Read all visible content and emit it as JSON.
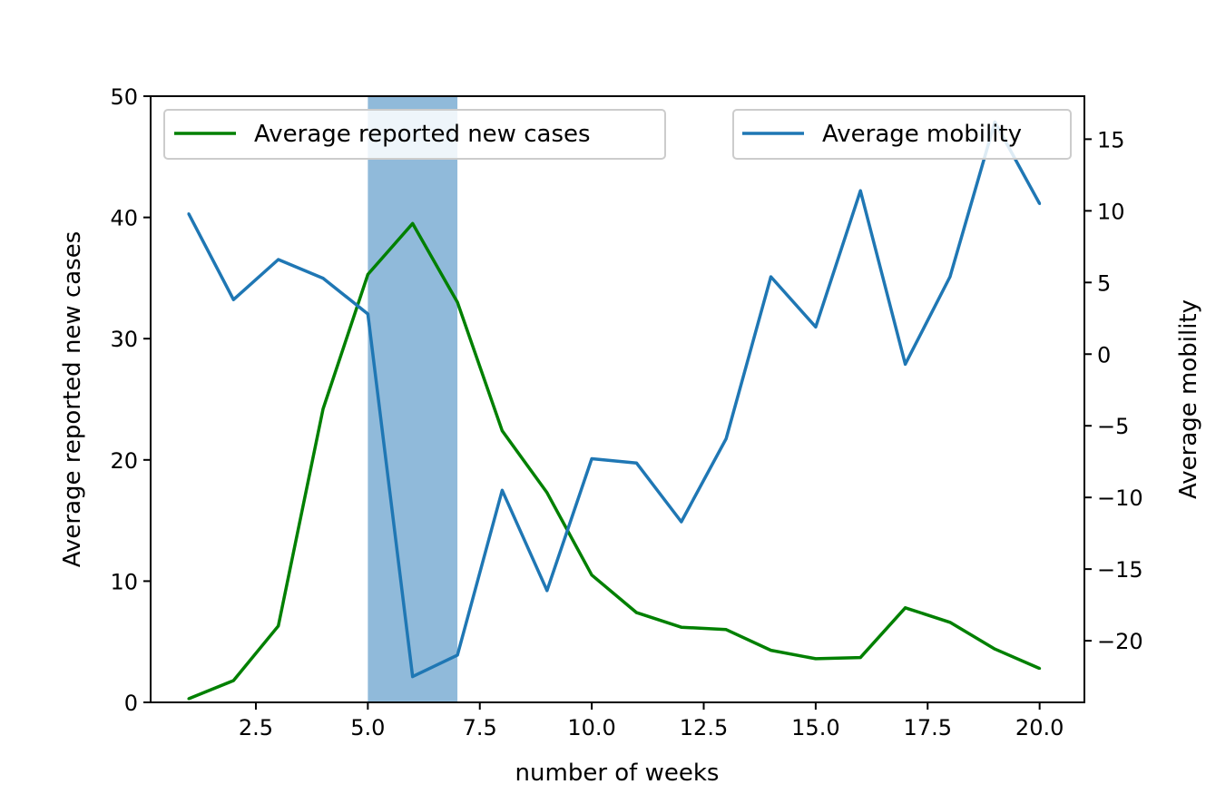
{
  "chart_data": {
    "type": "line",
    "title": "",
    "xlabel": "number of weeks",
    "ylabel_left": "Average reported new cases",
    "ylabel_right": "Average mobility",
    "xlim": [
      0.15,
      21.0
    ],
    "ylim_left": [
      0,
      50
    ],
    "ylim_right": [
      -24.3,
      18.0
    ],
    "x_ticks": [
      2.5,
      5.0,
      7.5,
      10.0,
      12.5,
      15.0,
      17.5,
      20.0
    ],
    "x_tick_labels": [
      "2.5",
      "5.0",
      "7.5",
      "10.0",
      "12.5",
      "15.0",
      "17.5",
      "20.0"
    ],
    "y_left_ticks": [
      0,
      10,
      20,
      30,
      40,
      50
    ],
    "y_left_tick_labels": [
      "0",
      "10",
      "20",
      "30",
      "40",
      "50"
    ],
    "y_right_ticks": [
      -20,
      -15,
      -10,
      -5,
      0,
      5,
      10,
      15
    ],
    "y_right_tick_labels": [
      "−20",
      "−15",
      "−10",
      "−5",
      "0",
      "5",
      "10",
      "15"
    ],
    "shaded_region": {
      "x_start": 5.0,
      "x_end": 7.0,
      "color": "#90bada"
    },
    "x": [
      1,
      2,
      3,
      4,
      5,
      6,
      7,
      8,
      9,
      10,
      11,
      12,
      13,
      14,
      15,
      16,
      17,
      18,
      19,
      20
    ],
    "series": [
      {
        "name": "Average reported new cases",
        "axis": "left",
        "color": "#008000",
        "values": [
          0.3,
          1.8,
          6.3,
          24.2,
          35.3,
          39.5,
          33.0,
          22.4,
          17.3,
          10.5,
          7.4,
          6.2,
          6.0,
          4.3,
          3.6,
          3.7,
          7.8,
          6.6,
          4.4,
          2.8
        ]
      },
      {
        "name": "Average mobility",
        "axis": "right",
        "color": "#1f77b4",
        "values": [
          9.8,
          3.8,
          6.6,
          5.3,
          2.8,
          -22.5,
          -21.0,
          -9.5,
          -16.5,
          -7.3,
          -7.6,
          -11.7,
          -5.9,
          5.4,
          1.9,
          11.4,
          -0.7,
          5.4,
          16.2,
          10.5
        ]
      }
    ],
    "legend_left": {
      "label": "Average reported new cases",
      "placement": "top-left"
    },
    "legend_right": {
      "label": "Average mobility",
      "placement": "top-right"
    }
  }
}
